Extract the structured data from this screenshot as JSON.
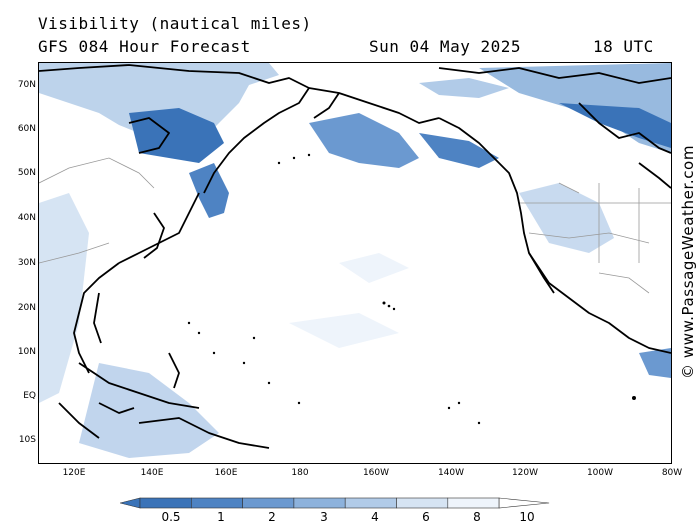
{
  "header": {
    "title": "Visibility (nautical miles)",
    "subtitle": "GFS 084 Hour Forecast",
    "date": "Sun 04 May 2025",
    "time": "18 UTC"
  },
  "credit": "© www.PassageWeather.com",
  "map": {
    "lat_labels": [
      "70N",
      "60N",
      "50N",
      "40N",
      "30N",
      "20N",
      "10N",
      "EQ",
      "10S"
    ],
    "lon_labels": [
      "120E",
      "140E",
      "160E",
      "180",
      "160W",
      "140W",
      "120W",
      "100W",
      "80W"
    ]
  },
  "legend": {
    "ticks": [
      "0.5",
      "1",
      "2",
      "3",
      "4",
      "6",
      "8",
      "10"
    ],
    "colors": [
      "#3a73b8",
      "#4e83c3",
      "#6b99d0",
      "#8db2dc",
      "#b1cbe8",
      "#d6e4f3",
      "#eef4fb",
      "#ffffff"
    ]
  },
  "colors": {
    "low_visibility": "#3a73b8",
    "mid_visibility": "#8db2dc",
    "coast": "#000000",
    "border": "#999999"
  }
}
